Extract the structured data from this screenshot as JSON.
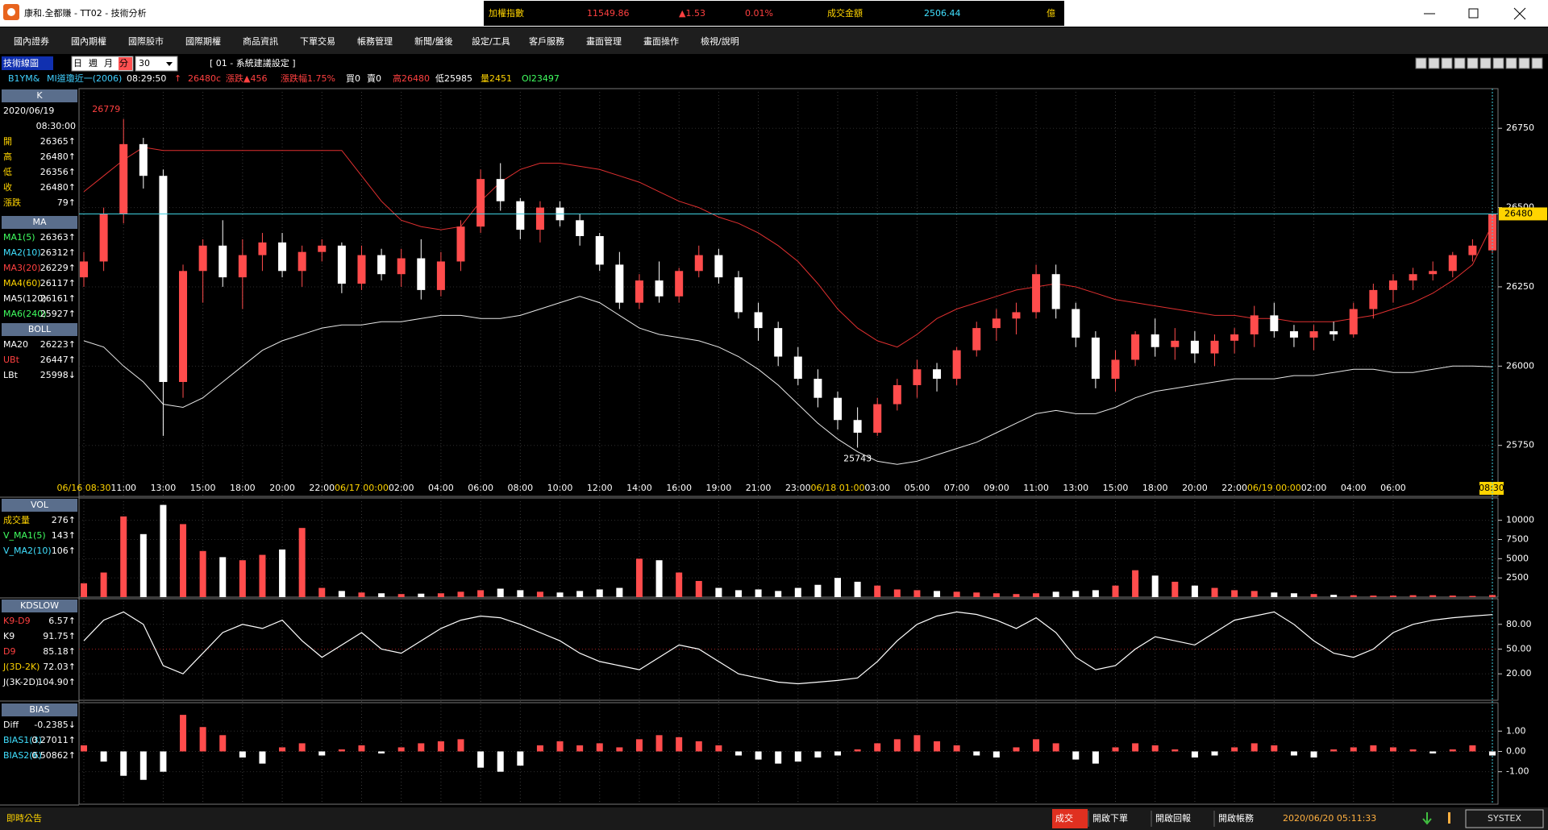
{
  "header": {
    "title": "康和.全都賺 - TT02 - 技術分析",
    "ticker": [
      {
        "text": "加權指數",
        "color": "#ffd400"
      },
      {
        "text": "11549.86",
        "color": "#ff4040"
      },
      {
        "text": "▲1.53",
        "color": "#ff4040"
      },
      {
        "text": "0.01%",
        "color": "#ff4040"
      },
      {
        "text": "成交金額",
        "color": "#ffd400"
      },
      {
        "text": "2506.44",
        "color": "#40e0ff"
      },
      {
        "text": "億",
        "color": "#ffd400"
      }
    ]
  },
  "menu": [
    "國內證券",
    "國內期權",
    "國際股市",
    "國際期權",
    "商品資訊",
    "下單交易",
    "帳務管理",
    "新聞/盤後",
    "設定/工具",
    "客戶服務",
    "畫面管理",
    "畫面操作",
    "檢視/說明"
  ],
  "toolbar": {
    "title": "技術線圖",
    "periods": [
      "日",
      "週",
      "月",
      "分"
    ],
    "interval": "30",
    "template": "[ 01 - 系統建議設定 ]"
  },
  "info_row": [
    {
      "text": "B1YM&",
      "color": "#40d0ff"
    },
    {
      "text": "MI道瓊近一(2006)",
      "color": "#40d0ff"
    },
    {
      "text": "08:29:50",
      "color": "#ffffff"
    },
    {
      "text": "↑",
      "color": "#ff4040"
    },
    {
      "text": "26480c",
      "color": "#ff4040"
    },
    {
      "text": "漲跌▲456",
      "color": "#ff4040"
    },
    {
      "text": "漲跌幅1.75%",
      "color": "#ff4040"
    },
    {
      "text": "買0",
      "color": "#ffffff"
    },
    {
      "text": "賣0",
      "color": "#ffffff"
    },
    {
      "text": "高26480",
      "color": "#ff4040"
    },
    {
      "text": "低25985",
      "color": "#ffffff"
    },
    {
      "text": "量2451",
      "color": "#ffd400"
    },
    {
      "text": "OI23497",
      "color": "#40ff60"
    }
  ],
  "side_panels": [
    {
      "title": "K",
      "rows": [
        {
          "label": "2020/06/19",
          "color": "#ffffff"
        },
        {
          "value": "08:30:00"
        },
        {
          "label": "開",
          "value": "26365↑",
          "color": "#ffd400"
        },
        {
          "label": "高",
          "value": "26480↑",
          "color": "#ffd400"
        },
        {
          "label": "低",
          "value": "26356↑",
          "color": "#ffd400"
        },
        {
          "label": "收",
          "value": "26480↑",
          "color": "#ffd400"
        },
        {
          "label": "漲跌",
          "value": "79↑",
          "color": "#ffd400"
        }
      ]
    },
    {
      "title": "MA",
      "rows": [
        {
          "label": "MA1(5)",
          "value": "26363↑",
          "color": "#40ff60"
        },
        {
          "label": "MA2(10)",
          "value": "26312↑",
          "color": "#40e0ff"
        },
        {
          "label": "MA3(20)",
          "value": "26229↑",
          "color": "#ff4040"
        },
        {
          "label": "MA4(60)",
          "value": "26117↑",
          "color": "#ffd400"
        },
        {
          "label": "MA5(120)",
          "value": "26161↑",
          "color": "#ffffff"
        },
        {
          "label": "MA6(240)",
          "value": "25927↑",
          "color": "#40ff60"
        }
      ]
    },
    {
      "title": "BOLL",
      "rows": [
        {
          "label": "MA20",
          "value": "26223↑",
          "color": "#ffffff"
        },
        {
          "label": "UBt",
          "value": "26447↑",
          "color": "#ff4040"
        },
        {
          "label": "LBt",
          "value": "25998↓",
          "color": "#ffffff"
        }
      ]
    },
    {
      "title": "VOL",
      "rows": [
        {
          "label": "成交量",
          "value": "276↑",
          "color": "#ffd400"
        },
        {
          "label": "V_MA1(5)",
          "value": "143↑",
          "color": "#40ff60"
        },
        {
          "label": "V_MA2(10)",
          "value": "106↑",
          "color": "#40e0ff"
        }
      ]
    },
    {
      "title": "KDSLOW",
      "rows": [
        {
          "label": "K9-D9",
          "value": "6.57↑",
          "color": "#ff4040"
        },
        {
          "label": "K9",
          "value": "91.75↑",
          "color": "#ffffff"
        },
        {
          "label": "D9",
          "value": "85.18↑",
          "color": "#ff4040"
        },
        {
          "label": "J(3D-2K)",
          "value": "72.03↑",
          "color": "#ffd400"
        },
        {
          "label": "J(3K-2D)",
          "value": "104.90↑",
          "color": "#ffffff"
        }
      ]
    },
    {
      "title": "BIAS",
      "rows": [
        {
          "label": "Diff",
          "value": "-0.2385↓",
          "color": "#ffffff"
        },
        {
          "label": "BIAS1(3)",
          "value": "0.27011↑",
          "color": "#40e0ff"
        },
        {
          "label": "BIAS2(6)",
          "value": "0.50862↑",
          "color": "#40e0ff"
        }
      ]
    }
  ],
  "chart_data": [
    {
      "type": "candlestick",
      "categories": [
        "06/16 08:30",
        null,
        "11:00",
        null,
        "13:00",
        null,
        "15:00",
        null,
        "18:00",
        null,
        "20:00",
        null,
        "22:00",
        null,
        "06/17 00:00",
        null,
        "02:00",
        null,
        "04:00",
        null,
        "06:00",
        null,
        "08:00",
        null,
        "10:00",
        null,
        "12:00",
        null,
        "14:00",
        null,
        "16:00",
        null,
        "19:00",
        null,
        "21:00",
        null,
        "23:00",
        null,
        "06/18 01:00",
        null,
        "03:00",
        null,
        "05:00",
        null,
        "07:00",
        null,
        "09:00",
        null,
        "11:00",
        null,
        "13:00",
        null,
        "15:00",
        null,
        "18:00",
        null,
        "20:00",
        null,
        "22:00",
        null,
        "06/19 00:00",
        null,
        "02:00",
        null,
        "04:00",
        null,
        "06:00",
        null,
        null,
        null,
        null,
        "08:30"
      ],
      "candles": [
        [
          26280,
          26360,
          26250,
          26330
        ],
        [
          26330,
          26500,
          26300,
          26480
        ],
        [
          26480,
          26779,
          26450,
          26700
        ],
        [
          26700,
          26720,
          26560,
          26600
        ],
        [
          26600,
          26620,
          25780,
          25950
        ],
        [
          25950,
          26320,
          25900,
          26300
        ],
        [
          26300,
          26400,
          26200,
          26380
        ],
        [
          26380,
          26460,
          26250,
          26280
        ],
        [
          26280,
          26400,
          26180,
          26350
        ],
        [
          26350,
          26420,
          26300,
          26390
        ],
        [
          26390,
          26420,
          26280,
          26300
        ],
        [
          26300,
          26380,
          26250,
          26360
        ],
        [
          26360,
          26400,
          26330,
          26380
        ],
        [
          26380,
          26390,
          26230,
          26260
        ],
        [
          26260,
          26380,
          26240,
          26350
        ],
        [
          26350,
          26370,
          26270,
          26290
        ],
        [
          26290,
          26370,
          26250,
          26340
        ],
        [
          26340,
          26400,
          26210,
          26240
        ],
        [
          26240,
          26360,
          26220,
          26330
        ],
        [
          26330,
          26460,
          26300,
          26440
        ],
        [
          26440,
          26620,
          26420,
          26590
        ],
        [
          26590,
          26640,
          26490,
          26520
        ],
        [
          26520,
          26530,
          26400,
          26430
        ],
        [
          26430,
          26520,
          26390,
          26500
        ],
        [
          26500,
          26520,
          26440,
          26460
        ],
        [
          26460,
          26480,
          26380,
          26410
        ],
        [
          26410,
          26420,
          26300,
          26320
        ],
        [
          26320,
          26360,
          26180,
          26200
        ],
        [
          26200,
          26290,
          26180,
          26270
        ],
        [
          26270,
          26330,
          26200,
          26220
        ],
        [
          26220,
          26310,
          26200,
          26300
        ],
        [
          26300,
          26380,
          26280,
          26350
        ],
        [
          26350,
          26370,
          26260,
          26280
        ],
        [
          26280,
          26300,
          26150,
          26170
        ],
        [
          26170,
          26200,
          26080,
          26120
        ],
        [
          26120,
          26140,
          26000,
          26030
        ],
        [
          26030,
          26060,
          25940,
          25960
        ],
        [
          25960,
          25990,
          25870,
          25900
        ],
        [
          25900,
          25920,
          25800,
          25830
        ],
        [
          25830,
          25870,
          25743,
          25790
        ],
        [
          25790,
          25900,
          25780,
          25880
        ],
        [
          25880,
          25960,
          25860,
          25940
        ],
        [
          25940,
          26020,
          25900,
          25990
        ],
        [
          25990,
          26010,
          25920,
          25960
        ],
        [
          25960,
          26060,
          25940,
          26050
        ],
        [
          26050,
          26140,
          26030,
          26120
        ],
        [
          26120,
          26180,
          26080,
          26150
        ],
        [
          26150,
          26200,
          26100,
          26170
        ],
        [
          26170,
          26320,
          26150,
          26290
        ],
        [
          26290,
          26320,
          26150,
          26180
        ],
        [
          26180,
          26200,
          26060,
          26090
        ],
        [
          26090,
          26110,
          25930,
          25960
        ],
        [
          25960,
          26050,
          25920,
          26020
        ],
        [
          26020,
          26110,
          26000,
          26100
        ],
        [
          26100,
          26150,
          26030,
          26060
        ],
        [
          26060,
          26120,
          26020,
          26080
        ],
        [
          26080,
          26110,
          26010,
          26040
        ],
        [
          26040,
          26100,
          26000,
          26080
        ],
        [
          26080,
          26120,
          26040,
          26100
        ],
        [
          26100,
          26190,
          26060,
          26160
        ],
        [
          26160,
          26200,
          26090,
          26110
        ],
        [
          26110,
          26130,
          26060,
          26090
        ],
        [
          26090,
          26130,
          26050,
          26110
        ],
        [
          26110,
          26140,
          26080,
          26100
        ],
        [
          26100,
          26200,
          26090,
          26180
        ],
        [
          26180,
          26260,
          26150,
          26240
        ],
        [
          26240,
          26290,
          26200,
          26270
        ],
        [
          26270,
          26310,
          26240,
          26290
        ],
        [
          26290,
          26330,
          26270,
          26300
        ],
        [
          26300,
          26360,
          26280,
          26350
        ],
        [
          26350,
          26400,
          26330,
          26380
        ],
        [
          26365,
          26480,
          26356,
          26480
        ]
      ],
      "up_color": "#ff4c4c",
      "down_color": "#ffffff",
      "bands": [
        {
          "color": "#e03030",
          "values": [
            26550,
            26600,
            26650,
            26690,
            26680,
            26680,
            26680,
            26680,
            26680,
            26680,
            26680,
            26680,
            26680,
            26680,
            26600,
            26520,
            26460,
            26440,
            26430,
            26440,
            26520,
            26580,
            26620,
            26640,
            26640,
            26630,
            26620,
            26600,
            26580,
            26550,
            26520,
            26500,
            26470,
            26450,
            26420,
            26380,
            26330,
            26260,
            26180,
            26120,
            26080,
            26060,
            26100,
            26150,
            26180,
            26200,
            26220,
            26240,
            26250,
            26260,
            26250,
            26230,
            26210,
            26200,
            26190,
            26180,
            26170,
            26160,
            26160,
            26150,
            26150,
            26140,
            26140,
            26140,
            26150,
            26160,
            26180,
            26200,
            26230,
            26270,
            26320,
            26447
          ]
        },
        {
          "color": "#e8e8e8",
          "values": [
            26080,
            26060,
            26000,
            25950,
            25880,
            25870,
            25900,
            25950,
            26000,
            26050,
            26080,
            26100,
            26120,
            26130,
            26130,
            26140,
            26140,
            26150,
            26160,
            26160,
            26150,
            26150,
            26160,
            26180,
            26200,
            26220,
            26200,
            26160,
            26120,
            26100,
            26090,
            26080,
            26060,
            26030,
            25990,
            25940,
            25880,
            25820,
            25770,
            25730,
            25700,
            25690,
            25700,
            25720,
            25740,
            25760,
            25790,
            25820,
            25850,
            25860,
            25850,
            25850,
            25870,
            25900,
            25920,
            25930,
            25940,
            25950,
            25960,
            25960,
            25960,
            25970,
            25970,
            25980,
            25990,
            25990,
            25980,
            25980,
            25990,
            26000,
            26000,
            25998
          ]
        }
      ],
      "ylim": [
        25640,
        26875
      ],
      "yticks": [
        25750,
        26000,
        26250,
        26500,
        26750
      ],
      "last_price": 26480,
      "high_label": 26779,
      "low_label": 25743
    },
    {
      "type": "bar",
      "values": [
        1800,
        3200,
        10500,
        8200,
        12000,
        9500,
        6000,
        5200,
        4800,
        5500,
        6200,
        9000,
        1200,
        800,
        600,
        500,
        400,
        450,
        500,
        700,
        900,
        1100,
        900,
        700,
        600,
        800,
        1000,
        1200,
        5000,
        4800,
        3200,
        2100,
        1200,
        900,
        1000,
        800,
        1200,
        1600,
        2500,
        2000,
        1500,
        1000,
        900,
        800,
        700,
        600,
        500,
        400,
        500,
        700,
        800,
        900,
        1500,
        3500,
        2800,
        2000,
        1500,
        1200,
        900,
        800,
        600,
        500,
        400,
        300,
        250,
        200,
        200,
        250,
        250,
        200,
        150,
        276
      ],
      "ylim": [
        0,
        12900
      ],
      "yticks": [
        2500,
        5000,
        7500,
        10000
      ]
    },
    {
      "type": "line",
      "color": "#ffffff",
      "values": [
        60,
        85,
        95,
        80,
        30,
        20,
        45,
        70,
        80,
        75,
        85,
        60,
        40,
        55,
        70,
        50,
        45,
        60,
        75,
        85,
        90,
        88,
        80,
        70,
        60,
        45,
        35,
        30,
        25,
        40,
        55,
        50,
        35,
        20,
        15,
        10,
        8,
        10,
        12,
        15,
        35,
        60,
        80,
        90,
        95,
        92,
        85,
        75,
        88,
        70,
        40,
        25,
        30,
        50,
        65,
        60,
        55,
        70,
        85,
        90,
        95,
        80,
        60,
        45,
        40,
        50,
        70,
        80,
        85,
        88,
        90,
        91.75
      ],
      "ylim": [
        -12,
        111
      ],
      "yticks": [
        {
          "value": 20,
          "label": "20.00"
        },
        {
          "value": 50,
          "label": "50.00"
        },
        {
          "value": 80,
          "label": "80.00"
        }
      ]
    },
    {
      "type": "bar",
      "values": [
        0.3,
        -0.5,
        -1.2,
        -1.4,
        -1.0,
        1.8,
        1.2,
        0.8,
        -0.3,
        -0.6,
        0.2,
        0.4,
        -0.2,
        0.1,
        0.3,
        -0.1,
        0.2,
        0.4,
        0.5,
        0.6,
        -0.8,
        -1.0,
        -0.7,
        0.3,
        0.5,
        0.3,
        0.4,
        0.2,
        0.6,
        0.8,
        0.7,
        0.5,
        0.3,
        -0.2,
        -0.4,
        -0.6,
        -0.5,
        -0.3,
        -0.2,
        0.1,
        0.4,
        0.6,
        0.8,
        0.5,
        0.3,
        -0.2,
        -0.3,
        0.2,
        0.6,
        0.4,
        -0.4,
        -0.6,
        0.2,
        0.4,
        0.3,
        0.1,
        -0.3,
        -0.2,
        0.2,
        0.4,
        0.3,
        -0.2,
        -0.3,
        0.1,
        0.2,
        0.3,
        0.2,
        0.1,
        -0.1,
        0.1,
        0.3,
        -0.2
      ],
      "ylim": [
        -2.6,
        2.4
      ],
      "yticks": [
        {
          "value": -1,
          "label": "-1.00"
        },
        {
          "value": 0,
          "label": "0.00"
        },
        {
          "value": 1,
          "label": "1.00"
        }
      ]
    }
  ],
  "status_bar": {
    "notice": "即時公告",
    "buttons": [
      "成交",
      "開啟下單",
      "開啟回報",
      "開啟帳務"
    ],
    "datetime": "2020/06/20 05:11:33",
    "brand": "SYSTEX"
  }
}
